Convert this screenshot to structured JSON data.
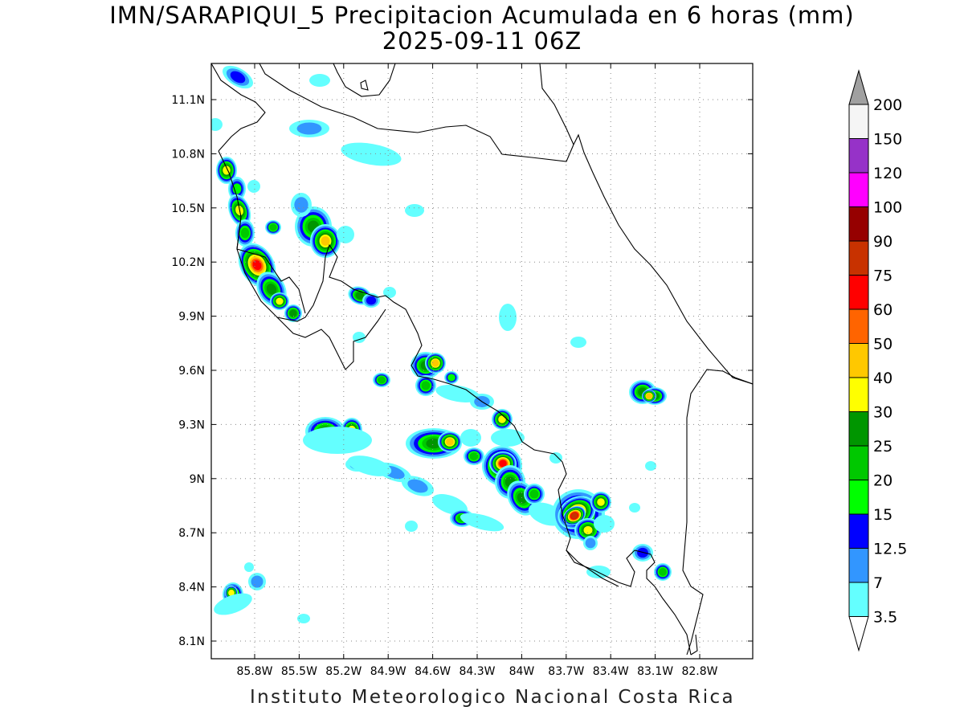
{
  "title": {
    "line1": "IMN/SARAPIQUI_5 Precipitacion Acumulada en 6 horas (mm)",
    "line2": "2025-09-11 06Z"
  },
  "footer": "Instituto Meteorologico Nacional Costa Rica",
  "map": {
    "lon_range": [
      -86.07,
      -82.6
    ],
    "lat_range": [
      8.0,
      11.3
    ],
    "lat_ticks": [
      "11.1N",
      "10.8N",
      "10.5N",
      "10.2N",
      "9.9N",
      "9.6N",
      "9.3N",
      "9N",
      "8.7N",
      "8.4N",
      "8.1N"
    ],
    "lon_ticks": [
      "85.8W",
      "85.5W",
      "85.2W",
      "84.9W",
      "84.6W",
      "84.3W",
      "84W",
      "83.7W",
      "83.4W",
      "83.1W",
      "82.8W"
    ],
    "grid": "dotted"
  },
  "colorbar": {
    "labels": [
      "3.5",
      "7",
      "12.5",
      "15",
      "20",
      "25",
      "30",
      "40",
      "50",
      "60",
      "75",
      "90",
      "100",
      "120",
      "150",
      "200"
    ],
    "colors": [
      "#64ffff",
      "#3296ff",
      "#0000ff",
      "#00ff00",
      "#00c800",
      "#009600",
      "#ffff00",
      "#ffc800",
      "#ff6400",
      "#ff0000",
      "#c83200",
      "#960000",
      "#ff00ff",
      "#9632c8",
      "#f5f5f5"
    ],
    "over_color": "#a0a0a0",
    "under_color": "#ffffff"
  }
}
